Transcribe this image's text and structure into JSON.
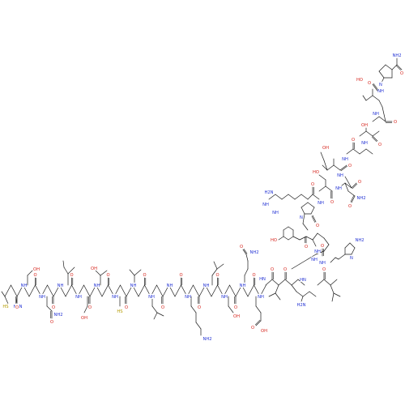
{
  "figure": {
    "type": "peptide-skeletal-structure",
    "background": "#ffffff",
    "colors": {
      "bond": "#1a1a1a",
      "oxygen": "#d7261e",
      "nitrogen": "#2433d4",
      "sulfur": "#b39b00"
    }
  },
  "atom_labels": {
    "hs": "HS",
    "nh2": "NH2",
    "h2n": "H2N",
    "oh": "OH",
    "ho": "HO",
    "o": "O",
    "n": "N",
    "nh": "NH",
    "hn": "HN",
    "h": "H",
    "s": "S"
  }
}
